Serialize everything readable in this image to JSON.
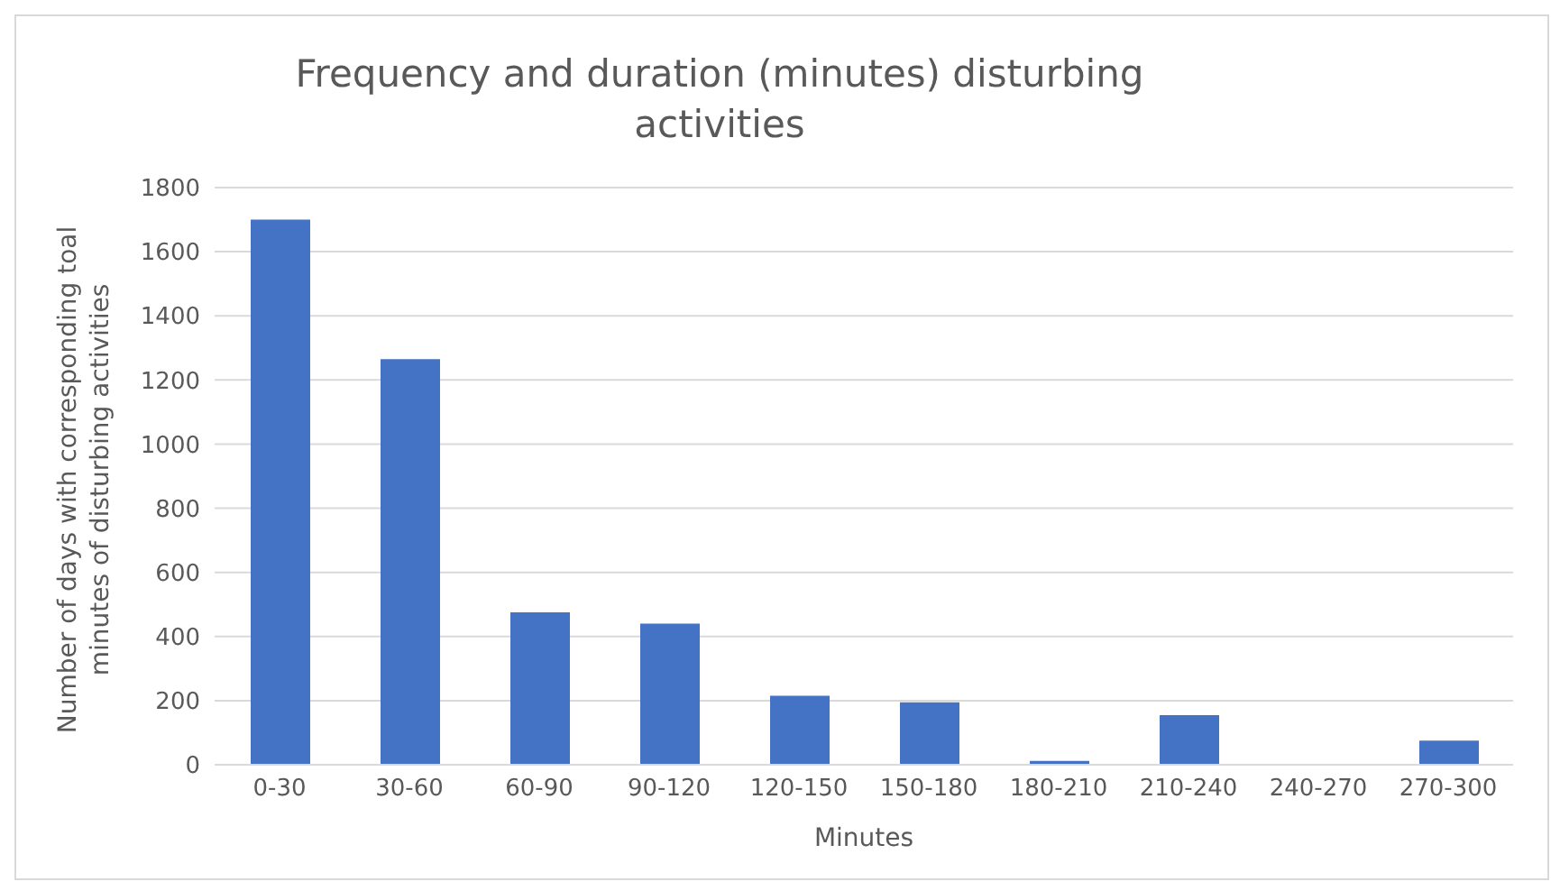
{
  "chart_data": {
    "type": "bar",
    "title": "Frequency and duration (minutes) disturbing activities",
    "xlabel": "Minutes",
    "ylabel": "Number of days with corresponding toal minutes of disturbing activities",
    "categories": [
      "0-30",
      "30-60",
      "60-90",
      "90-120",
      "120-150",
      "150-180",
      "180-210",
      "210-240",
      "240-270",
      "270-300"
    ],
    "values": [
      1700,
      1265,
      475,
      440,
      215,
      195,
      12,
      155,
      0,
      75
    ],
    "color": "#4472c4",
    "ylim": [
      0,
      1800
    ],
    "yticks": [
      0,
      200,
      400,
      600,
      800,
      1000,
      1200,
      1400,
      1600,
      1800
    ],
    "grid": "y"
  }
}
